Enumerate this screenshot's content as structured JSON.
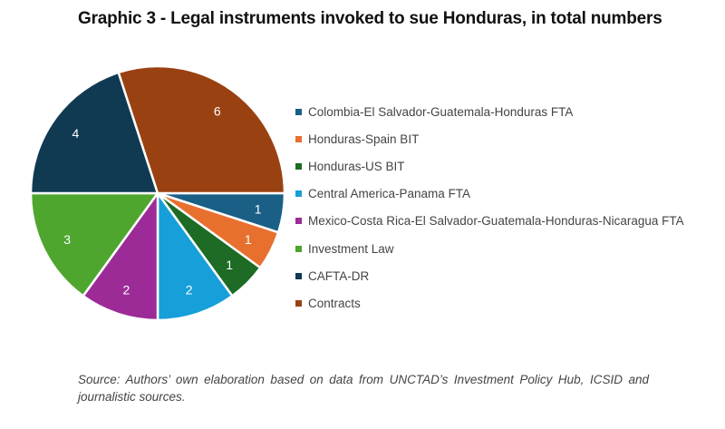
{
  "chart_data": {
    "type": "pie",
    "title": "Graphic 3 - Legal instruments invoked to sue Honduras, in total numbers",
    "categories": [
      "Colombia-El Salvador-Guatemala-Honduras FTA",
      "Honduras-Spain BIT",
      "Honduras-US BIT",
      "Central America-Panama FTA",
      "Mexico-Costa Rica-El Salvador-Guatemala-Honduras-Nicaragua FTA",
      "Investment Law",
      "CAFTA-DR",
      "Contracts"
    ],
    "values": [
      1,
      1,
      1,
      2,
      2,
      3,
      4,
      6
    ],
    "colors": [
      "#1a5f86",
      "#e8702f",
      "#1d6b24",
      "#169fd8",
      "#9d2b97",
      "#4ea62f",
      "#0f3a52",
      "#9a4112"
    ],
    "legend_position": "right"
  },
  "source": "Source: Authors’ own elaboration based on data from UNCTAD’s Investment Policy Hub, ICSID and journalistic sources."
}
